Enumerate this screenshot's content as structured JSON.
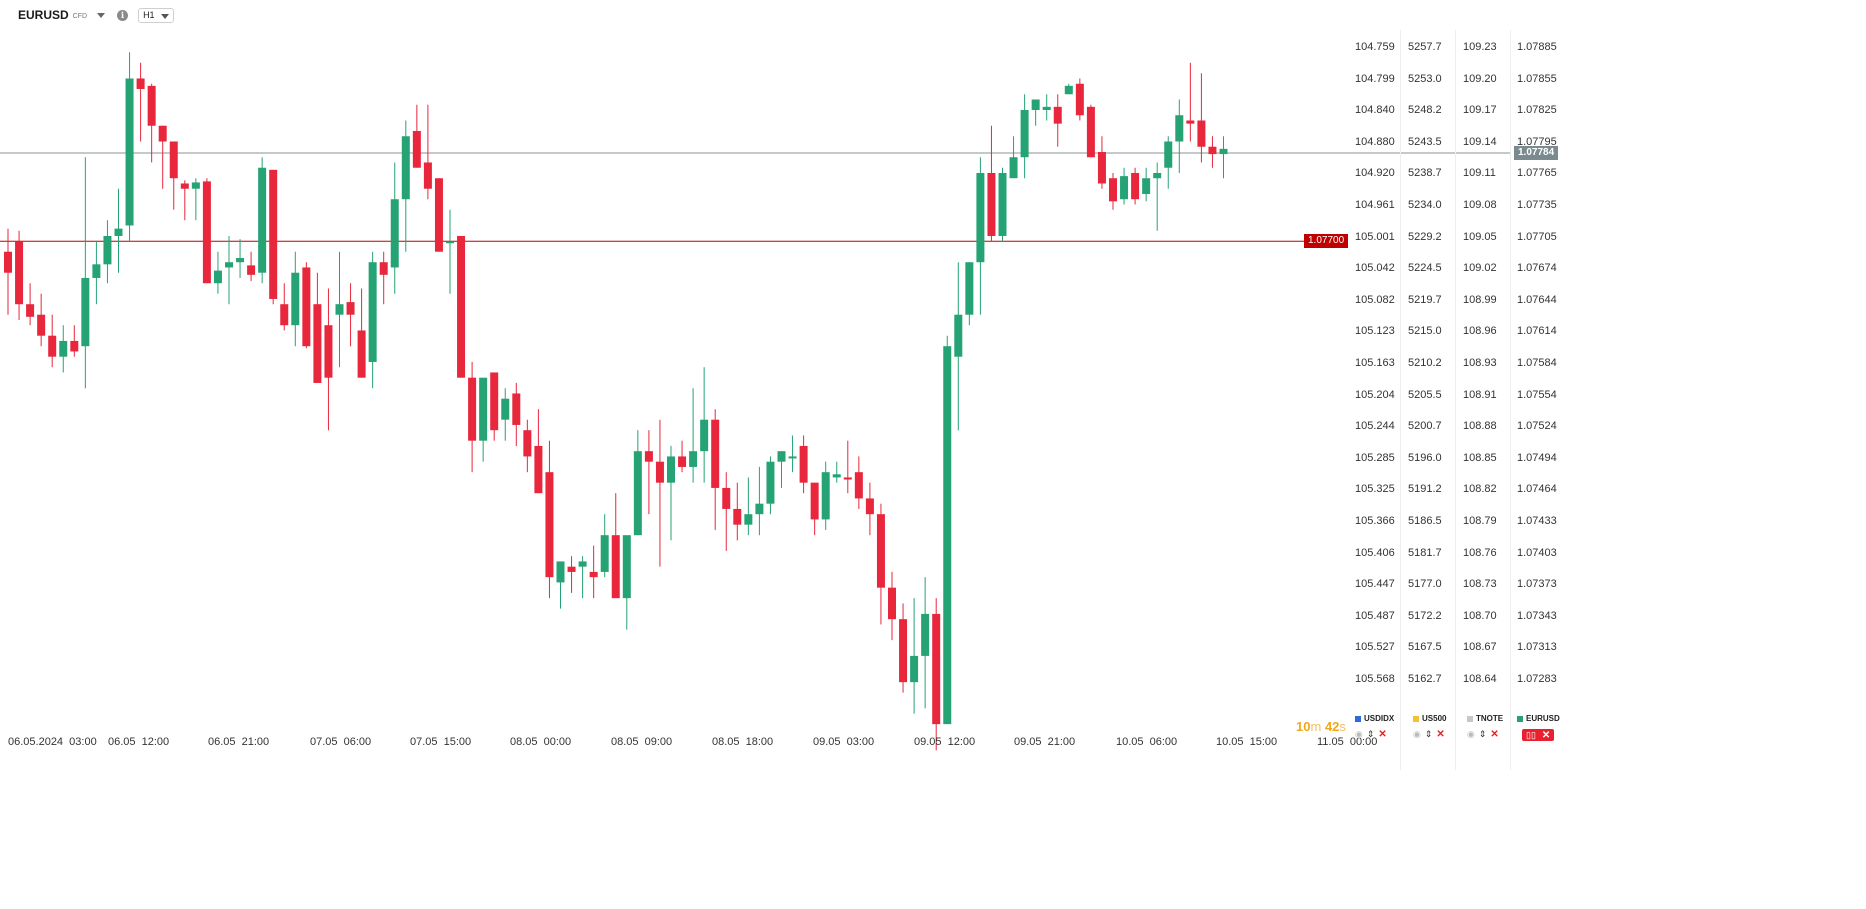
{
  "header": {
    "symbol": "EURUSD",
    "instrument_type": "CFD",
    "timeframe": "H1"
  },
  "countdown": {
    "minutes": "10",
    "min_unit": "m",
    "seconds": "42",
    "sec_unit": "s"
  },
  "colors": {
    "up": "#26a375",
    "down": "#e8273d",
    "level_line": "#c00000",
    "price_line": "#607070"
  },
  "icons": {
    "symbol_menu": "chevron-down-icon",
    "info": "info-icon",
    "timeframe": "chevron-down-icon"
  },
  "chart_data": {
    "type": "candlestick",
    "title": "EURUSD",
    "timeframe": "H1",
    "y_range": [
      1.0727,
      1.07905
    ],
    "y_ticks": [
      "1.07885",
      "1.07855",
      "1.07825",
      "1.07795",
      "1.07765",
      "1.07735",
      "1.07705",
      "1.07674",
      "1.07644",
      "1.07614",
      "1.07584",
      "1.07554",
      "1.07524",
      "1.07494",
      "1.07464",
      "1.07433",
      "1.07403",
      "1.07373",
      "1.07343",
      "1.07313",
      "1.07283"
    ],
    "x_labels": [
      "06.05.2024  03:00",
      "06.05  12:00",
      "06.05  21:00",
      "07.05  06:00",
      "07.05  15:00",
      "08.05  00:00",
      "08.05  09:00",
      "08.05  18:00",
      "09.05  03:00",
      "09.05  12:00",
      "09.05  21:00",
      "10.05  06:00",
      "10.05  15:00",
      "11.05  00:00"
    ],
    "current_price": "1.07784",
    "horizontal_level": "1.07700",
    "candles_ohlc": [
      [
        1.0769,
        1.07712,
        1.0763,
        1.0767
      ],
      [
        1.077,
        1.0771,
        1.07625,
        1.0764
      ],
      [
        1.0764,
        1.0766,
        1.0762,
        1.07628
      ],
      [
        1.0763,
        1.0765,
        1.076,
        1.0761
      ],
      [
        1.0761,
        1.0763,
        1.0758,
        1.0759
      ],
      [
        1.0759,
        1.0762,
        1.07575,
        1.07605
      ],
      [
        1.07605,
        1.0762,
        1.0759,
        1.07595
      ],
      [
        1.076,
        1.0778,
        1.0756,
        1.07665
      ],
      [
        1.07665,
        1.077,
        1.0764,
        1.07678
      ],
      [
        1.07678,
        1.0772,
        1.0766,
        1.07705
      ],
      [
        1.07705,
        1.0775,
        1.0767,
        1.07712
      ],
      [
        1.07715,
        1.0788,
        1.077,
        1.07855
      ],
      [
        1.07855,
        1.0787,
        1.07795,
        1.07845
      ],
      [
        1.07848,
        1.0785,
        1.07775,
        1.0781
      ],
      [
        1.0781,
        1.0781,
        1.0775,
        1.07795
      ],
      [
        1.07795,
        1.07795,
        1.0773,
        1.0776
      ],
      [
        1.07755,
        1.07758,
        1.0772,
        1.0775
      ],
      [
        1.0775,
        1.0776,
        1.0772,
        1.07756
      ],
      [
        1.07757,
        1.0776,
        1.0766,
        1.0766
      ],
      [
        1.0766,
        1.0769,
        1.0765,
        1.07672
      ],
      [
        1.07675,
        1.07705,
        1.0764,
        1.0768
      ],
      [
        1.0768,
        1.07702,
        1.07665,
        1.07684
      ],
      [
        1.07677,
        1.0769,
        1.07662,
        1.07668
      ],
      [
        1.0767,
        1.0778,
        1.0766,
        1.0777
      ],
      [
        1.07768,
        1.07768,
        1.0764,
        1.07645
      ],
      [
        1.0764,
        1.0766,
        1.07615,
        1.0762
      ],
      [
        1.0762,
        1.0769,
        1.076,
        1.0767
      ],
      [
        1.07675,
        1.0768,
        1.07598,
        1.076
      ],
      [
        1.0764,
        1.0767,
        1.07565,
        1.07565
      ],
      [
        1.0762,
        1.07655,
        1.0752,
        1.0757
      ],
      [
        1.0763,
        1.0769,
        1.0758,
        1.0764
      ],
      [
        1.07642,
        1.0766,
        1.076,
        1.0763
      ],
      [
        1.07615,
        1.07655,
        1.0757,
        1.0757
      ],
      [
        1.07585,
        1.0769,
        1.0756,
        1.0768
      ],
      [
        1.0768,
        1.0769,
        1.0764,
        1.07668
      ],
      [
        1.07675,
        1.07775,
        1.0765,
        1.0774
      ],
      [
        1.0774,
        1.07815,
        1.0769,
        1.078
      ],
      [
        1.07805,
        1.0783,
        1.0777,
        1.0777
      ],
      [
        1.07775,
        1.0783,
        1.0774,
        1.0775
      ],
      [
        1.0776,
        1.0776,
        1.0769,
        1.0769
      ],
      [
        1.077,
        1.0773,
        1.0765,
        1.077
      ],
      [
        1.07705,
        1.07705,
        1.0757,
        1.0757
      ],
      [
        1.0757,
        1.07585,
        1.0748,
        1.0751
      ],
      [
        1.0751,
        1.0756,
        1.0749,
        1.0757
      ],
      [
        1.07575,
        1.0756,
        1.0751,
        1.0752
      ],
      [
        1.0753,
        1.0756,
        1.0751,
        1.0755
      ],
      [
        1.07555,
        1.07565,
        1.07505,
        1.07525
      ],
      [
        1.0752,
        1.0753,
        1.0748,
        1.07495
      ],
      [
        1.07505,
        1.0754,
        1.0746,
        1.0746
      ],
      [
        1.0748,
        1.0751,
        1.0736,
        1.0738
      ],
      [
        1.07375,
        1.0739,
        1.0735,
        1.07395
      ],
      [
        1.0739,
        1.074,
        1.07365,
        1.07385
      ],
      [
        1.0739,
        1.074,
        1.0736,
        1.07395
      ],
      [
        1.07385,
        1.0741,
        1.0736,
        1.0738
      ],
      [
        1.07385,
        1.0744,
        1.0738,
        1.0742
      ],
      [
        1.0742,
        1.0746,
        1.0736,
        1.0736
      ],
      [
        1.0736,
        1.0739,
        1.0733,
        1.0742
      ],
      [
        1.0742,
        1.0752,
        1.0742,
        1.075
      ],
      [
        1.075,
        1.0752,
        1.0744,
        1.0749
      ],
      [
        1.0749,
        1.0753,
        1.0739,
        1.0747
      ],
      [
        1.0747,
        1.07505,
        1.07415,
        1.07495
      ],
      [
        1.07495,
        1.0751,
        1.0748,
        1.07485
      ],
      [
        1.07485,
        1.0756,
        1.0747,
        1.075
      ],
      [
        1.075,
        1.0758,
        1.0747,
        1.0753
      ],
      [
        1.0753,
        1.0754,
        1.07425,
        1.07465
      ],
      [
        1.07465,
        1.0748,
        1.07405,
        1.07445
      ],
      [
        1.07445,
        1.0747,
        1.07415,
        1.0743
      ],
      [
        1.0743,
        1.07475,
        1.0742,
        1.0744
      ],
      [
        1.0744,
        1.07485,
        1.0742,
        1.0745
      ],
      [
        1.0745,
        1.07495,
        1.0744,
        1.0749
      ],
      [
        1.0749,
        1.075,
        1.07465,
        1.075
      ],
      [
        1.07495,
        1.07515,
        1.0748,
        1.07495
      ],
      [
        1.07505,
        1.07515,
        1.0746,
        1.0747
      ],
      [
        1.0747,
        1.0747,
        1.0742,
        1.07435
      ],
      [
        1.07435,
        1.0749,
        1.07425,
        1.0748
      ],
      [
        1.07475,
        1.0749,
        1.0747,
        1.07478
      ],
      [
        1.07475,
        1.0751,
        1.0746,
        1.07473
      ],
      [
        1.0748,
        1.07495,
        1.07445,
        1.07455
      ],
      [
        1.07455,
        1.0747,
        1.0742,
        1.0744
      ],
      [
        1.0744,
        1.0745,
        1.07335,
        1.0737
      ],
      [
        1.0737,
        1.07385,
        1.0732,
        1.0734
      ],
      [
        1.0734,
        1.07355,
        1.0727,
        1.0728
      ],
      [
        1.0728,
        1.0736,
        1.0725,
        1.07305
      ],
      [
        1.07305,
        1.0738,
        1.07255,
        1.07345
      ],
      [
        1.07345,
        1.0736,
        1.07215,
        1.0724
      ],
      [
        1.0724,
        1.0761,
        1.0725,
        1.076
      ],
      [
        1.0759,
        1.0768,
        1.0752,
        1.0763
      ],
      [
        1.0763,
        1.0768,
        1.0762,
        1.0768
      ],
      [
        1.0768,
        1.0778,
        1.0763,
        1.07765
      ],
      [
        1.07765,
        1.0781,
        1.077,
        1.07705
      ],
      [
        1.07705,
        1.0777,
        1.077,
        1.07765
      ],
      [
        1.0776,
        1.078,
        1.07765,
        1.0778
      ],
      [
        1.0778,
        1.0784,
        1.0776,
        1.07825
      ],
      [
        1.07825,
        1.07835,
        1.0781,
        1.07835
      ],
      [
        1.07825,
        1.0784,
        1.07815,
        1.07828
      ],
      [
        1.07828,
        1.0784,
        1.0779,
        1.07812
      ],
      [
        1.0784,
        1.0785,
        1.0784,
        1.07848
      ],
      [
        1.0785,
        1.07855,
        1.07815,
        1.0782
      ],
      [
        1.07828,
        1.0783,
        1.0778,
        1.0778
      ],
      [
        1.07785,
        1.078,
        1.0775,
        1.07755
      ],
      [
        1.0776,
        1.07765,
        1.0773,
        1.07738
      ],
      [
        1.0774,
        1.0777,
        1.07735,
        1.07762
      ],
      [
        1.07765,
        1.0777,
        1.07735,
        1.0774
      ],
      [
        1.07745,
        1.0777,
        1.07738,
        1.0776
      ],
      [
        1.0776,
        1.07775,
        1.0771,
        1.07765
      ],
      [
        1.0777,
        1.078,
        1.0775,
        1.07795
      ],
      [
        1.07795,
        1.07835,
        1.07765,
        1.0782
      ],
      [
        1.07815,
        1.0787,
        1.07795,
        1.07812
      ],
      [
        1.07815,
        1.0786,
        1.07775,
        1.0779
      ],
      [
        1.0779,
        1.078,
        1.0777,
        1.07783
      ],
      [
        1.07783,
        1.078,
        1.0776,
        1.07788
      ]
    ]
  },
  "extra_scales": [
    {
      "name": "USDIDX",
      "color": "#2a6be0",
      "ticks": [
        "104.759",
        "104.799",
        "104.840",
        "104.880",
        "104.920",
        "104.961",
        "105.001",
        "105.042",
        "105.082",
        "105.123",
        "105.163",
        "105.204",
        "105.244",
        "105.285",
        "105.325",
        "105.366",
        "105.406",
        "105.447",
        "105.487",
        "105.527",
        "105.568"
      ]
    },
    {
      "name": "US500",
      "color": "#f2c12e",
      "ticks": [
        "5257.7",
        "5253.0",
        "5248.2",
        "5243.5",
        "5238.7",
        "5234.0",
        "5229.2",
        "5224.5",
        "5219.7",
        "5215.0",
        "5210.2",
        "5205.5",
        "5200.7",
        "5196.0",
        "5191.2",
        "5186.5",
        "5181.7",
        "5177.0",
        "5172.2",
        "5167.5",
        "5162.7"
      ]
    },
    {
      "name": "TNOTE",
      "color": "#c8c8c8",
      "ticks": [
        "109.23",
        "109.20",
        "109.17",
        "109.14",
        "109.11",
        "109.08",
        "109.05",
        "109.02",
        "108.99",
        "108.96",
        "108.93",
        "108.91",
        "108.88",
        "108.85",
        "108.82",
        "108.79",
        "108.76",
        "108.73",
        "108.70",
        "108.67",
        "108.64"
      ]
    }
  ],
  "primary_scale": {
    "name": "EURUSD",
    "color": "#26a375"
  }
}
